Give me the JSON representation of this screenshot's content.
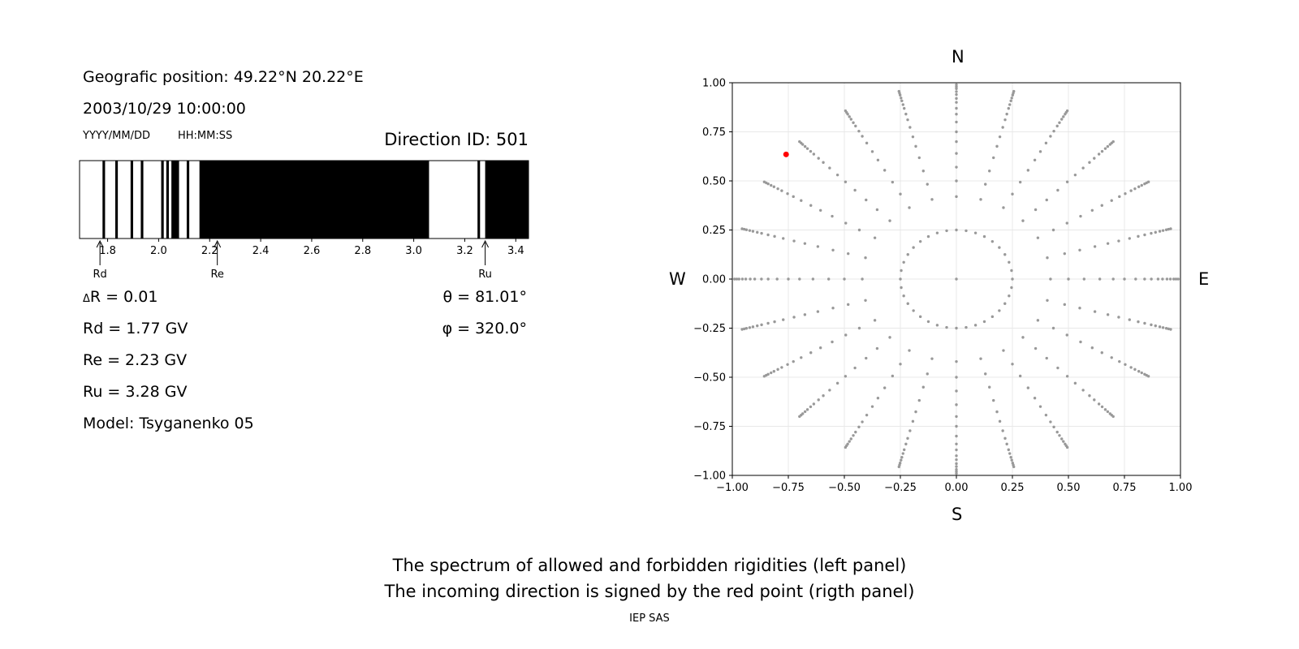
{
  "left_panel": {
    "position_text": "Geografic position: 49.22°N 20.22°E",
    "datetime_text": "2003/10/29 10:00:00",
    "date_format_label": "YYYY/MM/DD",
    "time_format_label": "HH:MM:SS",
    "direction_id_text": "Direction ID: 501",
    "delta_r_text": "R = 0.01",
    "delta_r_symbol": "Δ",
    "rd_text": "Rd = 1.77 GV",
    "re_text": "Re = 2.23 GV",
    "ru_text": "Ru = 3.28 GV",
    "model_text": "Model: Tsyganenko 05",
    "theta_text": "θ = 81.01°",
    "phi_text": "φ = 320.0°"
  },
  "right_panel": {
    "north_label": "N",
    "south_label": "S",
    "west_label": "W",
    "east_label": "E"
  },
  "caption": {
    "line1": "The spectrum of allowed and forbidden rigidities (left panel)",
    "line2": "The incoming direction is signed by the red point (rigth panel)"
  },
  "footer": "IEP SAS",
  "colors": {
    "forbidden": "#000000",
    "allowed": "#ffffff",
    "grid_points": "#999999",
    "selected_direction": "#ff0000",
    "grid_lines": "#e8e8e8"
  },
  "chart_data": [
    {
      "type": "bar",
      "name": "rigidity-spectrum",
      "xlim": [
        1.69,
        3.45
      ],
      "x_ticks": [
        1.8,
        2.0,
        2.2,
        2.4,
        2.6,
        2.8,
        3.0,
        3.2,
        3.4
      ],
      "x_tick_labels": [
        "1.8",
        "2.0",
        "2.2",
        "2.4",
        "2.6",
        "2.8",
        "3.0",
        "3.2",
        "3.4"
      ],
      "forbidden_bands": [
        [
          1.78,
          1.79
        ],
        [
          1.83,
          1.84
        ],
        [
          1.89,
          1.9
        ],
        [
          1.93,
          1.94
        ],
        [
          2.01,
          2.02
        ],
        [
          2.03,
          2.04
        ],
        [
          2.05,
          2.08
        ],
        [
          2.11,
          2.12
        ],
        [
          2.16,
          3.06
        ],
        [
          3.25,
          3.26
        ],
        [
          3.28,
          3.45
        ]
      ],
      "markers": [
        {
          "label": "Rd",
          "x": 1.77
        },
        {
          "label": "Re",
          "x": 2.23
        },
        {
          "label": "Ru",
          "x": 3.28
        }
      ]
    },
    {
      "type": "scatter",
      "name": "direction-grid",
      "xlim": [
        -1.0,
        1.0
      ],
      "ylim": [
        -1.0,
        1.0
      ],
      "x_ticks": [
        -1.0,
        -0.75,
        -0.5,
        -0.25,
        0.0,
        0.25,
        0.5,
        0.75,
        1.0
      ],
      "x_tick_labels": [
        "−1.00",
        "−0.75",
        "−0.50",
        "−0.25",
        "0.00",
        "0.25",
        "0.50",
        "0.75",
        "1.00"
      ],
      "y_ticks": [
        1.0,
        0.75,
        0.5,
        0.25,
        0.0,
        -0.25,
        -0.5,
        -0.75,
        -1.0
      ],
      "y_tick_labels": [
        "1.00",
        "0.75",
        "0.50",
        "0.25",
        "0.00",
        "−0.25",
        "−0.50",
        "−0.75",
        "−1.00"
      ],
      "grid": true,
      "points_generation": {
        "center": [
          0,
          0
        ],
        "ring_radii": [
          0.25,
          0.42,
          0.5,
          0.57,
          0.64,
          0.7,
          0.75,
          0.8,
          0.84,
          0.87,
          0.9,
          0.92,
          0.94,
          0.955,
          0.97,
          0.98,
          0.99
        ],
        "azimuth_step_deg": 15,
        "inner_ring_radius": 0.25,
        "inner_ring_step_deg": 10
      },
      "selected_point": {
        "x": -0.76,
        "y": 0.635,
        "color": "#ff0000"
      }
    }
  ]
}
